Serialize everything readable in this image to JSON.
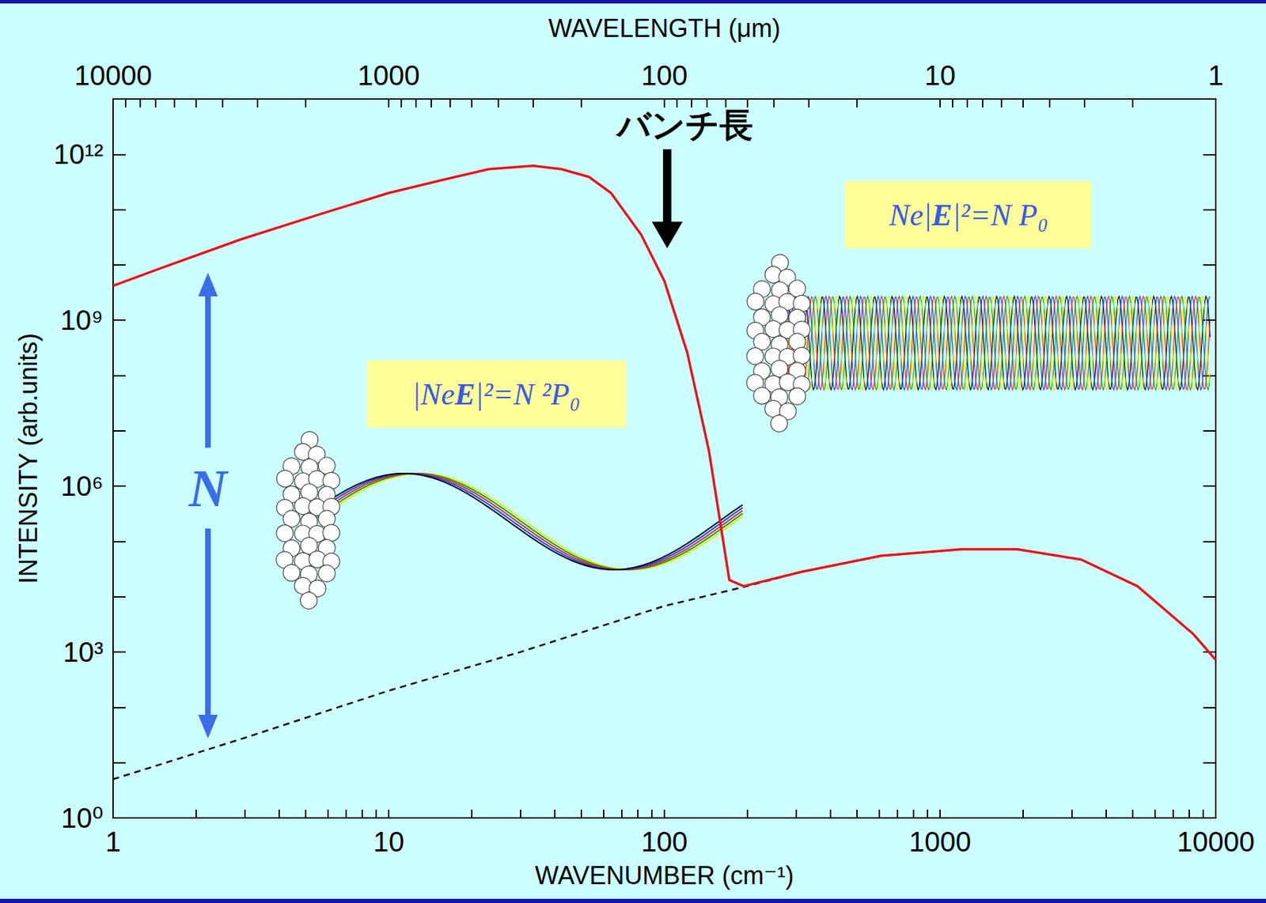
{
  "chart_data": {
    "type": "line",
    "x_label": "WAVENUMBER (cm⁻¹)",
    "x2_label": "WAVELENGTH (μm)",
    "y_label": "INTENSITY (arb.units)",
    "log": true,
    "grid": false,
    "xlim": [
      1,
      10000
    ],
    "xticks": [
      1,
      10,
      100,
      1000,
      10000
    ],
    "x2lim": [
      10000,
      1
    ],
    "x2ticks": [
      10000,
      1000,
      100,
      10,
      1
    ],
    "ylim": [
      1,
      10000000000000.0
    ],
    "yticks": [
      {
        "value": 1,
        "label": "10⁰"
      },
      {
        "value": 1000,
        "label": "10³"
      },
      {
        "value": 1000000,
        "label": "10⁶"
      },
      {
        "value": 1000000000,
        "label": "10⁹"
      },
      {
        "value": 1000000000000,
        "label": "10¹²"
      }
    ],
    "series": [
      {
        "color": "#e8141c",
        "line_style": "solid",
        "x": [
          1,
          1.49,
          2.91,
          5.69,
          10,
          15.5,
          23.1,
          33.4,
          42.2,
          53.3,
          64,
          82.4,
          100,
          121,
          145,
          172,
          194,
          313,
          612,
          1190,
          1910,
          3250,
          5200,
          8300,
          10000
        ],
        "values": [
          4200000000.0,
          8700000000.0,
          29000000000.0,
          84000000000.0,
          200000000000.0,
          340000000000.0,
          540000000000.0,
          620000000000.0,
          540000000000.0,
          390000000000.0,
          200000000000.0,
          35000000000.0,
          5100000000.0,
          260000000.0,
          4400000.0,
          20000.0,
          15500.0,
          28000.0,
          55000.0,
          72000.0,
          72000.0,
          47000.0,
          15500.0,
          2100,
          720
        ]
      },
      {
        "color": "#000000",
        "line_style": "dashed",
        "x": [
          1,
          3,
          10,
          30,
          100,
          194,
          313,
          612,
          1190,
          1910,
          3250,
          5200,
          8300,
          10000
        ],
        "values": [
          5,
          28,
          200,
          1000,
          6800,
          15000,
          28000.0,
          55000.0,
          72000.0,
          72000.0,
          47000.0,
          15500.0,
          2100,
          720
        ]
      }
    ],
    "annotations": [
      {
        "text": "バンチ長"
      },
      {
        "text": "|NeE|²=N ²P₀"
      },
      {
        "text": "Ne|E|²=N P₀"
      },
      {
        "text": "N"
      }
    ]
  }
}
